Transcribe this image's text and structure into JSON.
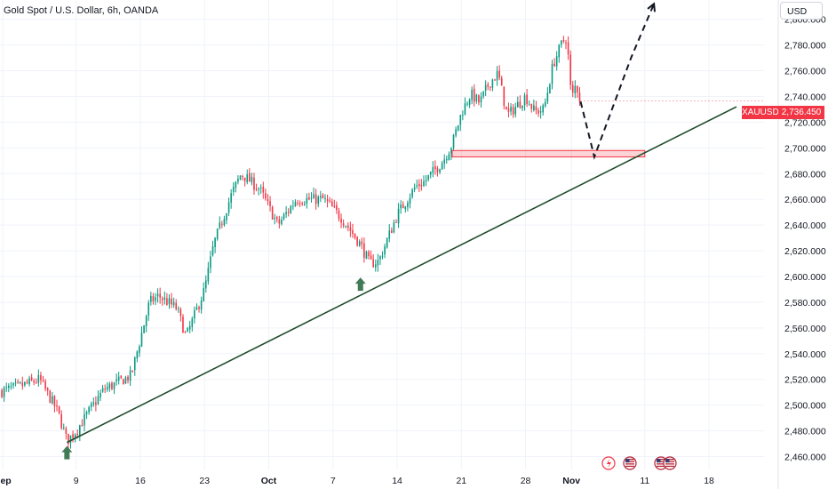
{
  "chart_data": {
    "type": "candlestick",
    "title": "Gold Spot / U.S. Dollar, 6h, OANDA",
    "symbol": "XAUUSD",
    "currency": "USD",
    "last_price": "2,736.450",
    "y_ticks": [
      "2,460.000",
      "2,480.000",
      "2,500.000",
      "2,520.000",
      "2,540.000",
      "2,560.000",
      "2,580.000",
      "2,600.000",
      "2,620.000",
      "2,640.000",
      "2,660.000",
      "2,680.000",
      "2,700.000",
      "2,720.000",
      "2,740.000",
      "2,760.000",
      "2,780.000",
      "2,800.000"
    ],
    "y_tick_values": [
      2460,
      2480,
      2500,
      2520,
      2540,
      2560,
      2580,
      2600,
      2620,
      2640,
      2660,
      2680,
      2700,
      2720,
      2740,
      2760,
      2780,
      2800
    ],
    "x_ticks": [
      "Sep",
      "9",
      "16",
      "23",
      "Oct",
      "7",
      "14",
      "21",
      "28",
      "Nov",
      "11",
      "18"
    ],
    "x_tick_days": [
      -2,
      6,
      13,
      20,
      27,
      34,
      41,
      48,
      55,
      60,
      68,
      75
    ],
    "bold_x_ticks": [
      "Sep",
      "Oct",
      "Nov"
    ],
    "ylim": [
      2450,
      2815
    ],
    "x_range_days": [
      -2.3,
      81
    ],
    "candle_days_per_bar": 0.25,
    "anchors": [
      [
        0,
        2515
      ],
      [
        2,
        2520
      ],
      [
        4,
        2495
      ],
      [
        5,
        2472
      ],
      [
        6,
        2480
      ],
      [
        9,
        2512
      ],
      [
        12,
        2523
      ],
      [
        14,
        2580
      ],
      [
        15,
        2585
      ],
      [
        17,
        2575
      ],
      [
        18,
        2553
      ],
      [
        20,
        2590
      ],
      [
        21,
        2625
      ],
      [
        23,
        2665
      ],
      [
        24,
        2680
      ],
      [
        26,
        2668
      ],
      [
        28,
        2640
      ],
      [
        30,
        2660
      ],
      [
        33,
        2660
      ],
      [
        35,
        2645
      ],
      [
        37,
        2625
      ],
      [
        38,
        2610
      ],
      [
        39,
        2612
      ],
      [
        41,
        2648
      ],
      [
        43,
        2670
      ],
      [
        44,
        2674
      ],
      [
        46,
        2690
      ],
      [
        47,
        2703
      ],
      [
        48,
        2727
      ],
      [
        49,
        2742
      ],
      [
        50,
        2735
      ],
      [
        51,
        2750
      ],
      [
        52,
        2758
      ],
      [
        53,
        2725
      ],
      [
        55,
        2740
      ],
      [
        56,
        2728
      ],
      [
        57,
        2730
      ],
      [
        58,
        2765
      ],
      [
        59,
        2782
      ],
      [
        59.5,
        2786
      ],
      [
        60,
        2737
      ],
      [
        60.5,
        2750
      ],
      [
        61,
        2736
      ]
    ],
    "trendline": {
      "start": [
        5,
        2471
      ],
      "end": [
        78,
        2732
      ]
    },
    "support_zone": {
      "x_start": 47,
      "x_end": 68,
      "y_low": 2693,
      "y_high": 2698
    },
    "projection_path": [
      [
        61,
        2736
      ],
      [
        62.5,
        2693
      ],
      [
        66.5,
        2770
      ],
      [
        69,
        2812
      ]
    ],
    "projection_arrow_tip": [
      69.2,
      2810
    ],
    "up_arrows": [
      [
        5,
        2471
      ],
      [
        37,
        2602
      ]
    ],
    "colors": {
      "up": "#089981",
      "down": "#f23645",
      "trendline": "#1e4d2b",
      "arrow": "#417a55",
      "zone": "#f23645",
      "last_price_tag": "#f23645",
      "grid": "#f0f3fa",
      "axis_text": "#131722"
    }
  }
}
